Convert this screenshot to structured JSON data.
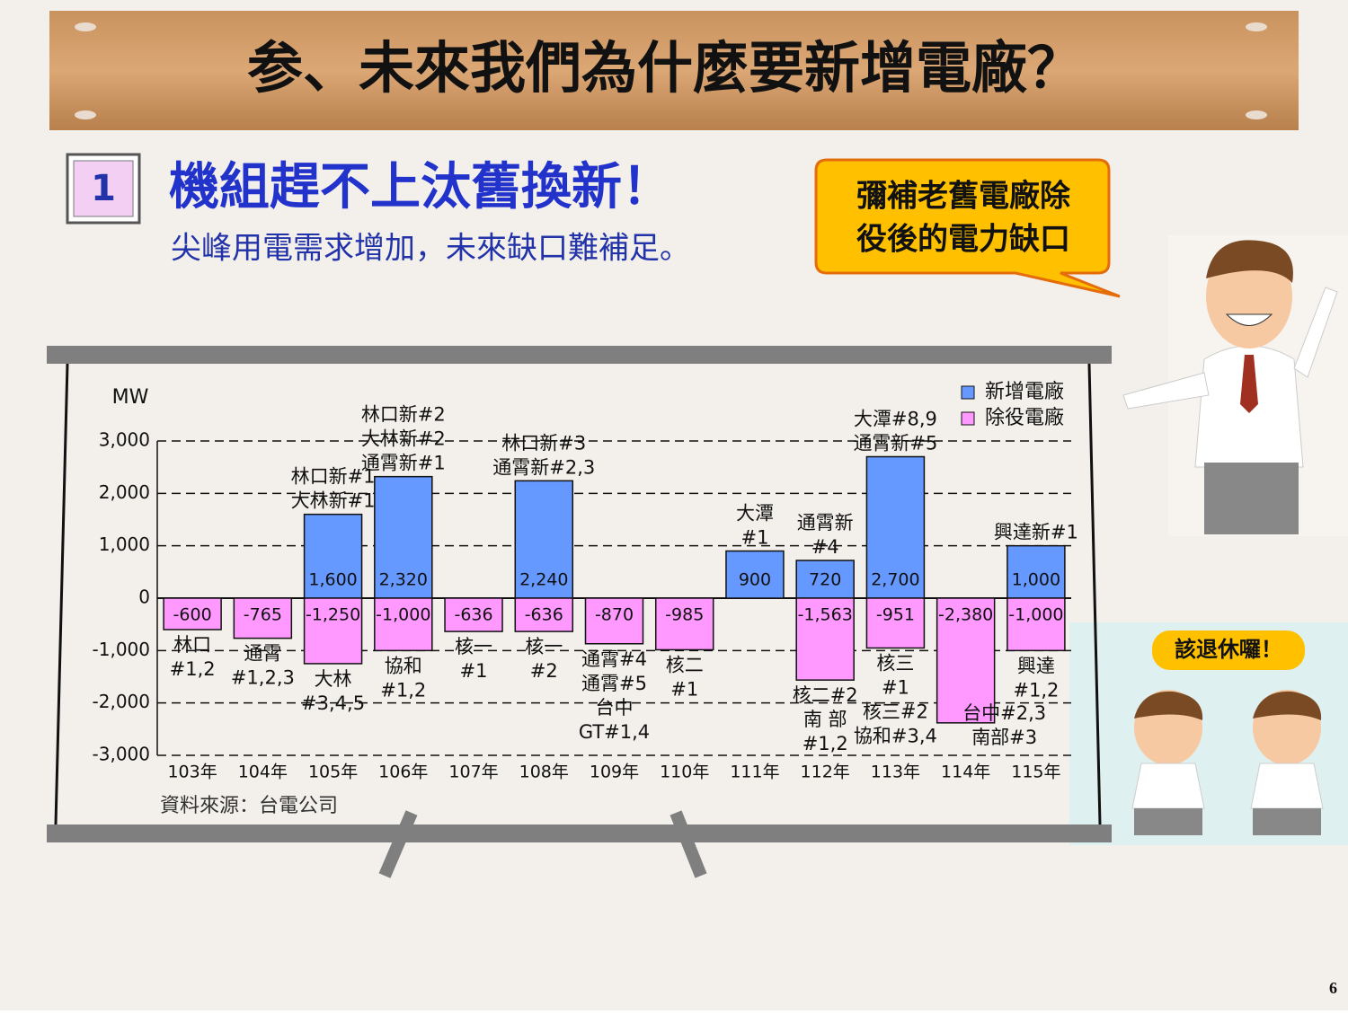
{
  "header": {
    "title": "参、未來我們為什麼要新增電廠？",
    "badge": "1",
    "heading": "機組趕不上汰舊換新！",
    "subtitle": "尖峰用電需求增加，未來缺口難補足。",
    "bubble": [
      "彌補老舊電廠除",
      "役後的電力缺口"
    ],
    "retire_bubble": "該退休囉！",
    "page": "6"
  },
  "chart_data": {
    "type": "bar",
    "stacked": false,
    "y_label": "MW",
    "source": "資料來源：台電公司",
    "legend": "top-right",
    "grid": true,
    "categories": [
      "103年",
      "104年",
      "105年",
      "106年",
      "107年",
      "108年",
      "109年",
      "110年",
      "111年",
      "112年",
      "113年",
      "114年",
      "115年"
    ],
    "ylim": [
      -3000,
      3000
    ],
    "yticks": [
      {
        "value": -3000,
        "label": "-3,000"
      },
      {
        "value": -2000,
        "label": "-2,000"
      },
      {
        "value": -1000,
        "label": "-1,000"
      },
      0,
      {
        "value": 1000,
        "label": "1,000"
      },
      {
        "value": 2000,
        "label": "2,000"
      },
      {
        "value": 3000,
        "label": "3,000"
      }
    ],
    "series": [
      {
        "name": "新增電廠",
        "color": "#6699ff",
        "values": [
          null,
          null,
          1600,
          2320,
          null,
          2240,
          null,
          null,
          900,
          720,
          2700,
          null,
          1000
        ],
        "value_labels": [
          null,
          null,
          "1,600",
          "2,320",
          null,
          "2,240",
          null,
          null,
          "900",
          "720",
          "2,700",
          null,
          "1,000"
        ],
        "plants": [
          null,
          null,
          [
            "林口新#1",
            "大林新#1"
          ],
          [
            "林口新#2",
            "大林新#2",
            "通霄新#1"
          ],
          null,
          [
            "林口新#3",
            "通霄新#2,3"
          ],
          null,
          null,
          [
            "大潭",
            "#1"
          ],
          [
            "通霄新",
            "#4"
          ],
          [
            "大潭#8,9",
            "通霄新#5"
          ],
          null,
          [
            "興達新#1"
          ]
        ]
      },
      {
        "name": "除役電廠",
        "color": "#ff99ff",
        "values": [
          -600,
          -765,
          -1250,
          -1000,
          -636,
          -636,
          -870,
          -985,
          null,
          -1563,
          -951,
          -2380,
          -1000
        ],
        "value_labels": [
          "-600",
          "-765",
          "-1,250",
          "-1,000",
          "-636",
          "-636",
          "-870",
          "-985",
          null,
          "-1,563",
          "-951",
          "-2,380",
          "-1,000"
        ],
        "plants": [
          [
            "林口",
            "#1,2"
          ],
          [
            "通霄",
            "#1,2,3"
          ],
          [
            "大林",
            "#3,4,5"
          ],
          [
            "協和",
            "#1,2"
          ],
          [
            "核一",
            "#1"
          ],
          [
            "核一",
            "#2"
          ],
          [
            "通霄#4",
            "通霄#5",
            "台中",
            "GT#1,4"
          ],
          [
            "核二",
            "#1"
          ],
          null,
          [
            "核二#2",
            "南 部",
            "#1,2"
          ],
          [
            "核三",
            "#1",
            "核三#2",
            "協和#3,4"
          ],
          [
            "台中#2,3",
            "南部#3"
          ],
          [
            "興達",
            "#1,2"
          ]
        ]
      }
    ]
  }
}
